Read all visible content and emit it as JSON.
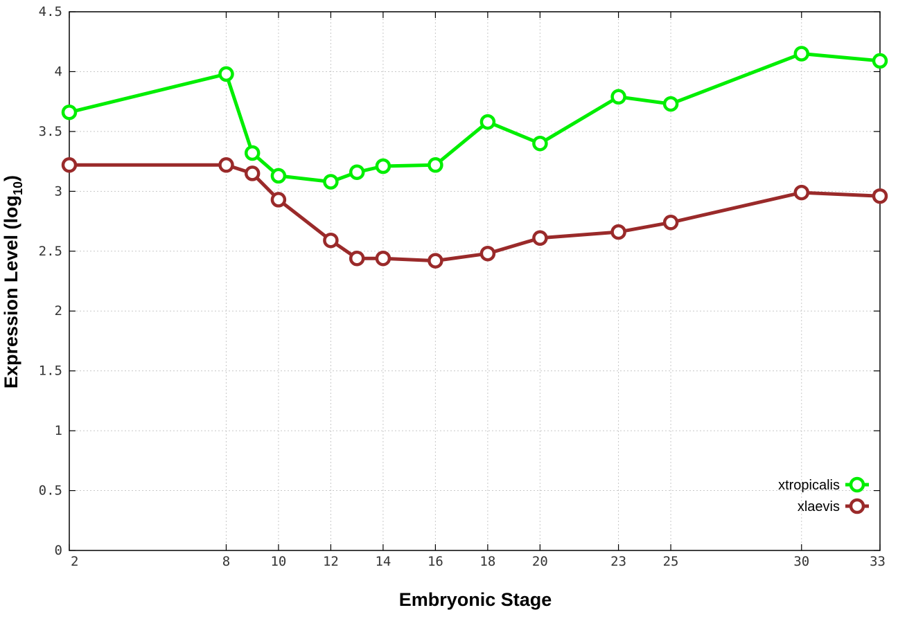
{
  "chart_data": {
    "type": "line",
    "title": "",
    "xlabel": "Embryonic Stage",
    "ylabel_main": "Expression Level (log",
    "ylabel_sub": "10",
    "ylabel_close": ")",
    "x": [
      2,
      8,
      9,
      10,
      12,
      13,
      14,
      16,
      18,
      20,
      23,
      25,
      30,
      33
    ],
    "x_ticks": [
      "2",
      "8",
      "10",
      "12",
      "14",
      "16",
      "18",
      "20",
      "23",
      "25",
      "30",
      "33"
    ],
    "x_tick_values": [
      2,
      8,
      10,
      12,
      14,
      16,
      18,
      20,
      23,
      25,
      30,
      33
    ],
    "xlim": [
      2,
      33
    ],
    "y_ticks": [
      "0",
      "0.5",
      "1",
      "1.5",
      "2",
      "2.5",
      "3",
      "3.5",
      "4",
      "4.5"
    ],
    "y_tick_values": [
      0,
      0.5,
      1,
      1.5,
      2,
      2.5,
      3,
      3.5,
      4,
      4.5
    ],
    "ylim": [
      0,
      4.5
    ],
    "grid": true,
    "legend_position": "bottom-right",
    "series": [
      {
        "name": "xtropicalis",
        "color": "#00ee00",
        "values": [
          3.66,
          3.98,
          3.32,
          3.13,
          3.08,
          3.16,
          3.21,
          3.22,
          3.58,
          3.4,
          3.79,
          3.73,
          4.15,
          4.09
        ]
      },
      {
        "name": "xlaevis",
        "color": "#9a2a2a",
        "values": [
          3.22,
          3.22,
          3.15,
          2.93,
          2.59,
          2.44,
          2.44,
          2.42,
          2.48,
          2.61,
          2.66,
          2.74,
          2.99,
          2.96
        ]
      }
    ]
  }
}
